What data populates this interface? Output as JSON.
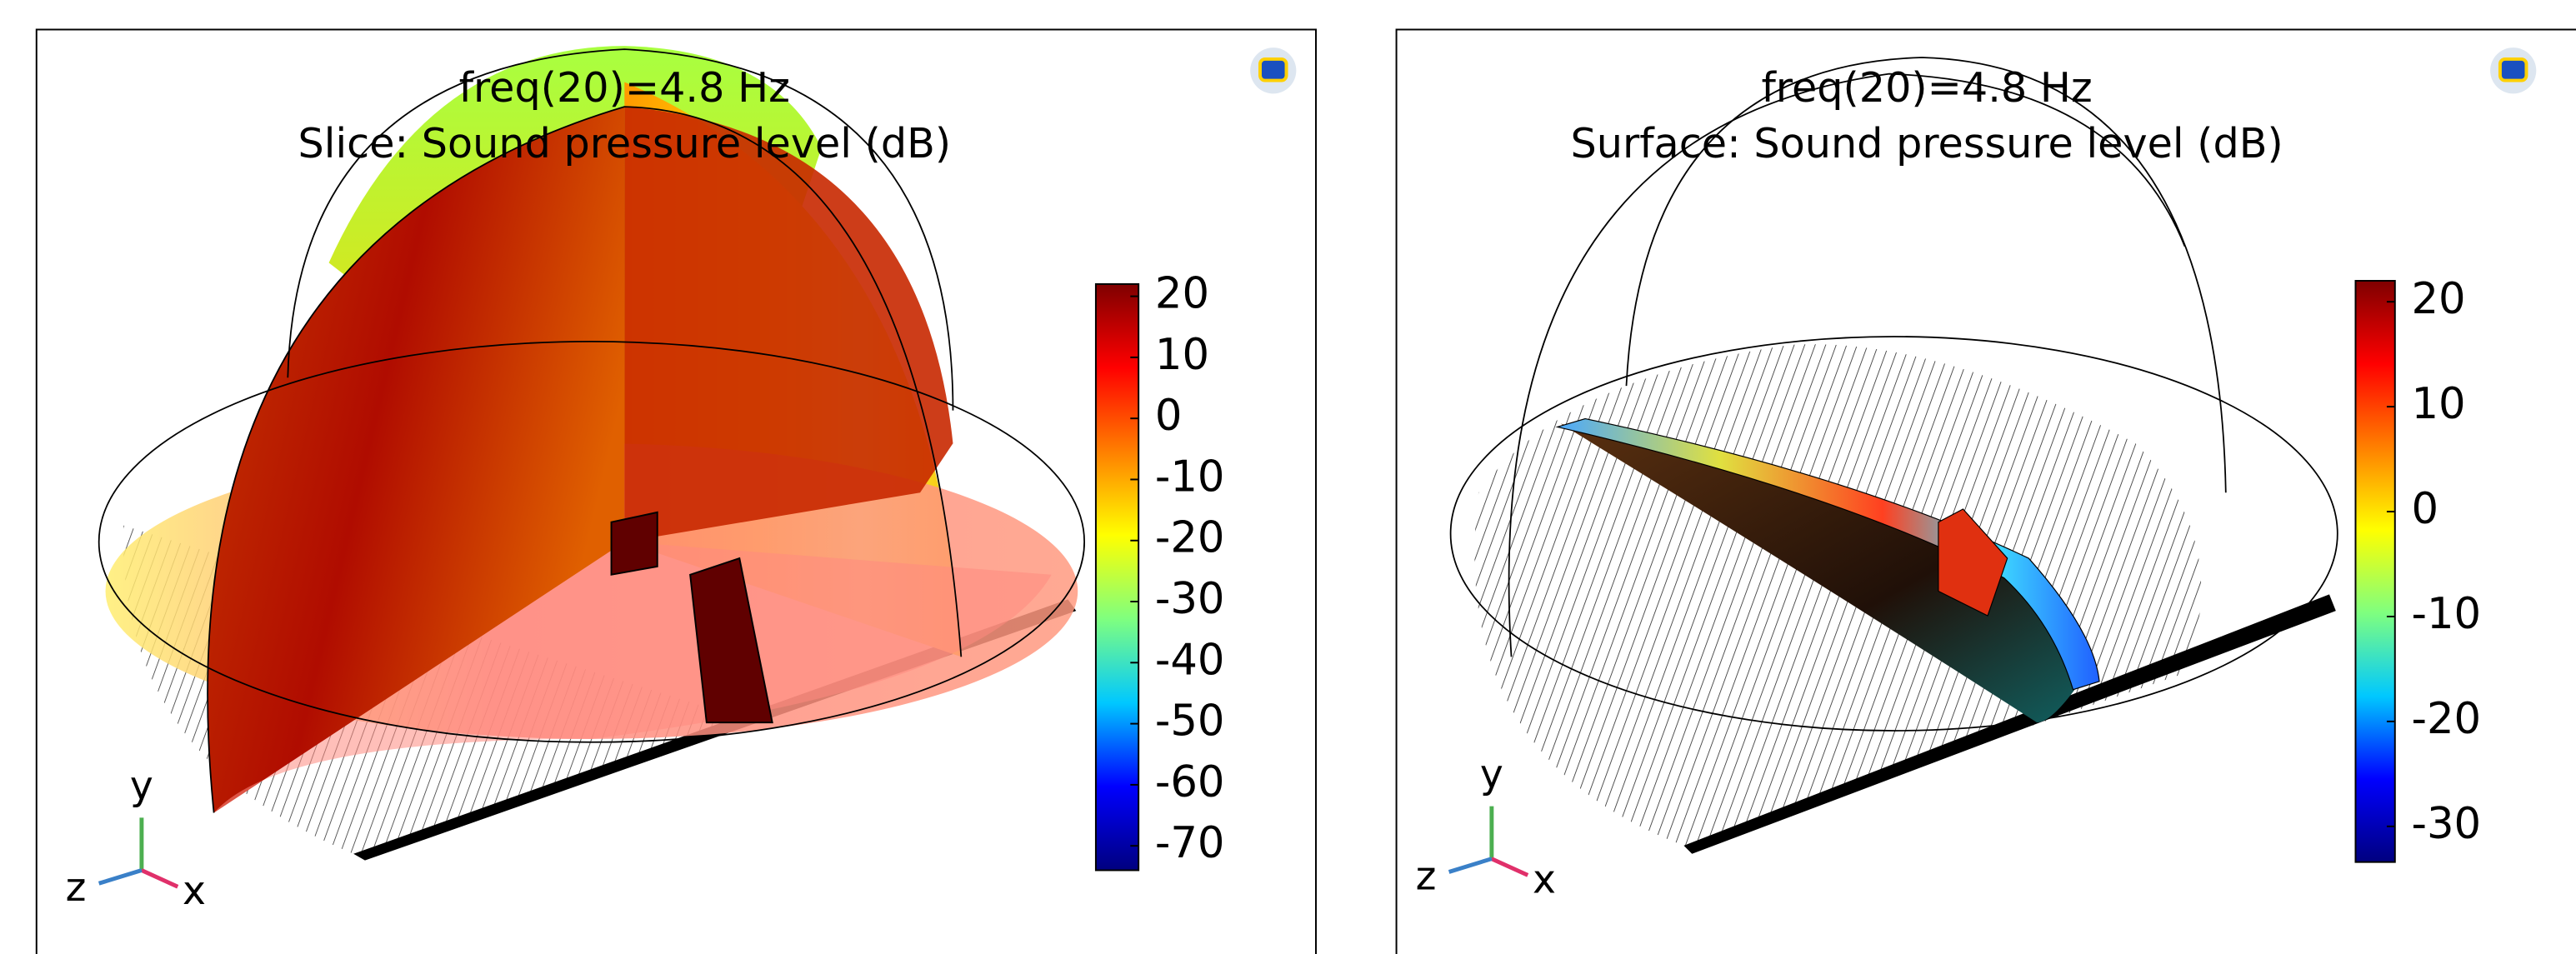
{
  "chart_data": [
    {
      "type": "slice3d",
      "title_lines": [
        "freq(20)=4.8 Hz",
        "Slice: Sound pressure level (dB)"
      ],
      "colorbar": {
        "lim": [
          -74,
          22
        ],
        "ticks": [
          20,
          10,
          0,
          -10,
          -20,
          -30,
          -40,
          -50,
          -60,
          -70
        ],
        "colormap": [
          "#00007f",
          "#0000ff",
          "#00c8ff",
          "#7fff7f",
          "#ffff00",
          "#ff7f00",
          "#ff0000",
          "#7f0000"
        ]
      },
      "axis_labels": {
        "x": "x",
        "y": "y",
        "z": "z"
      }
    },
    {
      "type": "surface3d",
      "title_lines": [
        "freq(20)=4.8 Hz",
        "Surface: Sound pressure level (dB)"
      ],
      "colorbar": {
        "lim": [
          -33.4,
          22
        ],
        "ticks": [
          20,
          10,
          0,
          -10,
          -20,
          -30
        ],
        "colormap": [
          "#00007f",
          "#0000ff",
          "#00c8ff",
          "#7fff7f",
          "#ffff00",
          "#ff7f00",
          "#ff0000",
          "#7f0000"
        ]
      },
      "axis_labels": {
        "x": "x",
        "y": "y",
        "z": "z"
      }
    }
  ]
}
